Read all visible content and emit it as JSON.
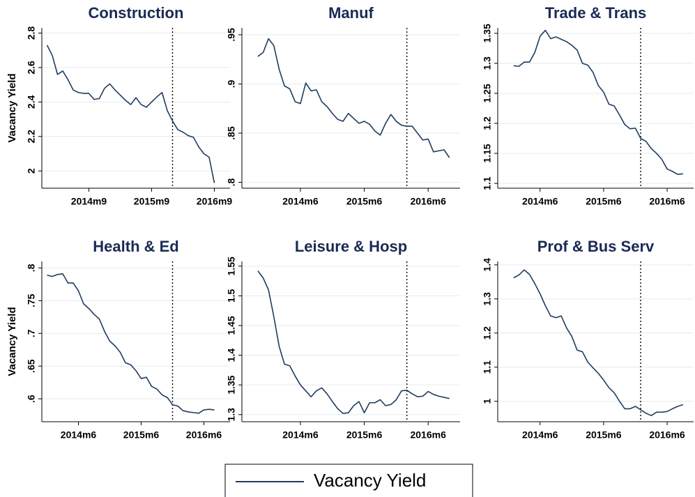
{
  "chart_data": [
    {
      "type": "line",
      "title": "Construction",
      "y_label": "Vacancy Yield",
      "x": [
        "2014m1",
        "2014m2",
        "2014m3",
        "2014m4",
        "2014m5",
        "2014m6",
        "2014m7",
        "2014m8",
        "2014m9",
        "2014m10",
        "2014m11",
        "2014m12",
        "2015m1",
        "2015m2",
        "2015m3",
        "2015m4",
        "2015m5",
        "2015m6",
        "2015m7",
        "2015m8",
        "2015m9",
        "2015m10",
        "2015m11",
        "2015m12",
        "2016m1",
        "2016m2",
        "2016m3",
        "2016m4",
        "2016m5",
        "2016m6",
        "2016m7",
        "2016m8",
        "2016m9"
      ],
      "series": [
        {
          "name": "Vacancy Yield",
          "color": "#1f3c5e",
          "values": [
            2.73,
            2.67,
            2.56,
            2.58,
            2.53,
            2.47,
            2.455,
            2.45,
            2.45,
            2.415,
            2.42,
            2.48,
            2.505,
            2.47,
            2.44,
            2.41,
            2.385,
            2.425,
            2.385,
            2.37,
            2.4,
            2.43,
            2.455,
            2.35,
            2.29,
            2.24,
            2.225,
            2.205,
            2.195,
            2.14,
            2.1,
            2.08,
            1.93
          ]
        }
      ],
      "xlim": [
        "2013m12",
        "2016m12"
      ],
      "xticks": [
        "2014m9",
        "2015m9",
        "2016m9"
      ],
      "ylim": [
        1.9,
        2.83
      ],
      "yticks": [
        2,
        2.2,
        2.4,
        2.6,
        2.8
      ],
      "grid": true,
      "vline": "2016m1"
    },
    {
      "type": "line",
      "title": "Manuf",
      "x": [
        "2013m10",
        "2013m11",
        "2013m12",
        "2014m1",
        "2014m2",
        "2014m3",
        "2014m4",
        "2014m5",
        "2014m6",
        "2014m7",
        "2014m8",
        "2014m9",
        "2014m10",
        "2014m11",
        "2014m12",
        "2015m1",
        "2015m2",
        "2015m3",
        "2015m4",
        "2015m5",
        "2015m6",
        "2015m7",
        "2015m8",
        "2015m9",
        "2015m10",
        "2015m11",
        "2015m12",
        "2016m1",
        "2016m2",
        "2016m3",
        "2016m4",
        "2016m5",
        "2016m6",
        "2016m7",
        "2016m8",
        "2016m9",
        "2016m10"
      ],
      "series": [
        {
          "name": "Vacancy Yield",
          "color": "#1f3c5e",
          "values": [
            0.928,
            0.932,
            0.946,
            0.939,
            0.915,
            0.898,
            0.895,
            0.882,
            0.88,
            0.901,
            0.893,
            0.894,
            0.882,
            0.877,
            0.87,
            0.864,
            0.862,
            0.87,
            0.865,
            0.86,
            0.862,
            0.859,
            0.852,
            0.848,
            0.86,
            0.869,
            0.862,
            0.858,
            0.857,
            0.857,
            0.85,
            0.843,
            0.844,
            0.831,
            0.832,
            0.833,
            0.825
          ]
        }
      ],
      "xlim": [
        "2013m7",
        "2016m12"
      ],
      "xticks": [
        "2014m6",
        "2015m6",
        "2016m6"
      ],
      "ylim": [
        0.794,
        0.957
      ],
      "yticks": [
        {
          "value": 0.8,
          "label": ".8"
        },
        {
          "value": 0.85,
          "label": ".85"
        },
        {
          "value": 0.9,
          "label": ".9"
        },
        {
          "value": 0.95,
          "label": ".95"
        }
      ],
      "grid": true,
      "vline": "2016m2"
    },
    {
      "type": "line",
      "title": "Trade & Trans",
      "x": [
        "2014m1",
        "2014m2",
        "2014m3",
        "2014m4",
        "2014m5",
        "2014m6",
        "2014m7",
        "2014m8",
        "2014m9",
        "2014m10",
        "2014m11",
        "2014m12",
        "2015m1",
        "2015m2",
        "2015m3",
        "2015m4",
        "2015m5",
        "2015m6",
        "2015m7",
        "2015m8",
        "2015m9",
        "2015m10",
        "2015m11",
        "2015m12",
        "2016m1",
        "2016m2",
        "2016m3",
        "2016m4",
        "2016m5",
        "2016m6",
        "2016m7",
        "2016m8",
        "2016m9"
      ],
      "series": [
        {
          "name": "Vacancy Yield",
          "color": "#1f3c5e",
          "values": [
            1.296,
            1.295,
            1.302,
            1.302,
            1.318,
            1.345,
            1.355,
            1.341,
            1.344,
            1.34,
            1.336,
            1.33,
            1.322,
            1.3,
            1.297,
            1.285,
            1.263,
            1.252,
            1.232,
            1.229,
            1.214,
            1.198,
            1.191,
            1.192,
            1.175,
            1.17,
            1.158,
            1.15,
            1.14,
            1.124,
            1.12,
            1.115,
            1.116
          ]
        }
      ],
      "xlim": [
        "2013m10",
        "2016m11"
      ],
      "xticks": [
        "2014m6",
        "2015m6",
        "2016m6"
      ],
      "ylim": [
        1.092,
        1.359
      ],
      "yticks": [
        1.1,
        1.15,
        1.2,
        1.25,
        1.3,
        1.35
      ],
      "grid": true,
      "vline": "2016m1"
    },
    {
      "type": "line",
      "title": "Health & Ed",
      "y_label": "Vacancy Yield",
      "x": [
        "2013m12",
        "2014m1",
        "2014m2",
        "2014m3",
        "2014m4",
        "2014m5",
        "2014m6",
        "2014m7",
        "2014m8",
        "2014m9",
        "2014m10",
        "2014m11",
        "2014m12",
        "2015m1",
        "2015m2",
        "2015m3",
        "2015m4",
        "2015m5",
        "2015m6",
        "2015m7",
        "2015m8",
        "2015m9",
        "2015m10",
        "2015m11",
        "2015m12",
        "2016m1",
        "2016m2",
        "2016m3",
        "2016m4",
        "2016m5",
        "2016m6",
        "2016m7",
        "2016m8"
      ],
      "series": [
        {
          "name": "Vacancy Yield",
          "color": "#1f3c5e",
          "values": [
            0.789,
            0.787,
            0.79,
            0.791,
            0.777,
            0.777,
            0.765,
            0.745,
            0.738,
            0.729,
            0.722,
            0.703,
            0.688,
            0.681,
            0.671,
            0.655,
            0.652,
            0.643,
            0.631,
            0.633,
            0.619,
            0.615,
            0.606,
            0.602,
            0.591,
            0.589,
            0.582,
            0.58,
            0.579,
            0.578,
            0.583,
            0.584,
            0.583
          ]
        }
      ],
      "xlim": [
        "2013m11",
        "2016m11"
      ],
      "xticks": [
        "2014m6",
        "2015m6",
        "2016m6"
      ],
      "ylim": [
        0.565,
        0.81
      ],
      "yticks": [
        {
          "value": 0.6,
          "label": ".6"
        },
        {
          "value": 0.65,
          "label": ".65"
        },
        {
          "value": 0.7,
          "label": ".7"
        },
        {
          "value": 0.75,
          "label": ".75"
        },
        {
          "value": 0.8,
          "label": ".8"
        }
      ],
      "grid": true,
      "vline": "2015m12"
    },
    {
      "type": "line",
      "title": "Leisure & Hosp",
      "x": [
        "2013m10",
        "2013m11",
        "2013m12",
        "2014m1",
        "2014m2",
        "2014m3",
        "2014m4",
        "2014m5",
        "2014m6",
        "2014m7",
        "2014m8",
        "2014m9",
        "2014m10",
        "2014m11",
        "2014m12",
        "2015m1",
        "2015m2",
        "2015m3",
        "2015m4",
        "2015m5",
        "2015m6",
        "2015m7",
        "2015m8",
        "2015m9",
        "2015m10",
        "2015m11",
        "2015m12",
        "2016m1",
        "2016m2",
        "2016m3",
        "2016m4",
        "2016m5",
        "2016m6",
        "2016m7",
        "2016m8",
        "2016m9",
        "2016m10"
      ],
      "series": [
        {
          "name": "Vacancy Yield",
          "color": "#1f3c5e",
          "values": [
            1.542,
            1.53,
            1.51,
            1.465,
            1.415,
            1.385,
            1.382,
            1.365,
            1.35,
            1.34,
            1.33,
            1.34,
            1.345,
            1.335,
            1.322,
            1.31,
            1.302,
            1.303,
            1.315,
            1.322,
            1.303,
            1.32,
            1.32,
            1.325,
            1.315,
            1.317,
            1.325,
            1.34,
            1.341,
            1.335,
            1.33,
            1.331,
            1.339,
            1.334,
            1.331,
            1.329,
            1.327
          ]
        }
      ],
      "xlim": [
        "2013m7",
        "2016m12"
      ],
      "xticks": [
        "2014m6",
        "2015m6",
        "2016m6"
      ],
      "ylim": [
        1.288,
        1.558
      ],
      "yticks": [
        1.3,
        1.35,
        1.4,
        1.45,
        1.5,
        1.55
      ],
      "grid": true,
      "vline": "2016m2"
    },
    {
      "type": "line",
      "title": "Prof & Bus Serv",
      "x": [
        "2014m1",
        "2014m2",
        "2014m3",
        "2014m4",
        "2014m5",
        "2014m6",
        "2014m7",
        "2014m8",
        "2014m9",
        "2014m10",
        "2014m11",
        "2014m12",
        "2015m1",
        "2015m2",
        "2015m3",
        "2015m4",
        "2015m5",
        "2015m6",
        "2015m7",
        "2015m8",
        "2015m9",
        "2015m10",
        "2015m11",
        "2015m12",
        "2016m1",
        "2016m2",
        "2016m3",
        "2016m4",
        "2016m5",
        "2016m6",
        "2016m7",
        "2016m8",
        "2016m9"
      ],
      "series": [
        {
          "name": "Vacancy Yield",
          "color": "#1f3c5e",
          "values": [
            1.362,
            1.37,
            1.385,
            1.372,
            1.345,
            1.315,
            1.28,
            1.25,
            1.245,
            1.25,
            1.215,
            1.19,
            1.15,
            1.145,
            1.115,
            1.098,
            1.082,
            1.062,
            1.04,
            1.025,
            1.0,
            0.978,
            0.978,
            0.985,
            0.975,
            0.965,
            0.958,
            0.968,
            0.968,
            0.97,
            0.978,
            0.985,
            0.99
          ]
        }
      ],
      "xlim": [
        "2013m10",
        "2016m11"
      ],
      "xticks": [
        "2014m6",
        "2015m6",
        "2016m6"
      ],
      "ylim": [
        0.94,
        1.41
      ],
      "yticks": [
        1,
        1.1,
        1.2,
        1.3,
        1.4
      ],
      "grid": true,
      "vline": "2016m1"
    }
  ]
}
